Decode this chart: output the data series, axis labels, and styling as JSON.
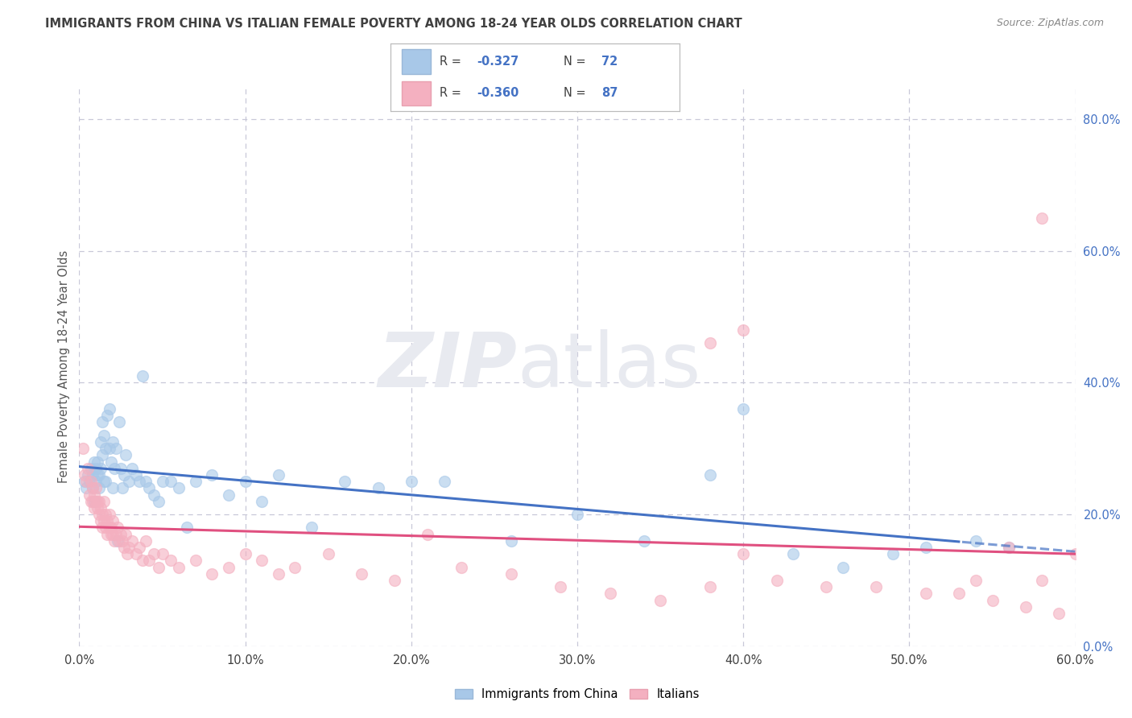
{
  "title": "IMMIGRANTS FROM CHINA VS ITALIAN FEMALE POVERTY AMONG 18-24 YEAR OLDS CORRELATION CHART",
  "source": "Source: ZipAtlas.com",
  "ylabel": "Female Poverty Among 18-24 Year Olds",
  "x_min": 0.0,
  "x_max": 0.6,
  "y_min": 0.0,
  "y_max": 0.85,
  "x_ticks": [
    0.0,
    0.1,
    0.2,
    0.3,
    0.4,
    0.5,
    0.6
  ],
  "y_ticks_right": [
    0.0,
    0.2,
    0.4,
    0.6,
    0.8
  ],
  "legend_r1": "-0.327",
  "legend_n1": "72",
  "legend_r2": "-0.360",
  "legend_n2": "87",
  "legend_label1": "Immigrants from China",
  "legend_label2": "Italians",
  "color_blue": "#a8c8e8",
  "color_pink": "#f4b0c0",
  "color_blue_line": "#4472c4",
  "color_pink_line": "#e05080",
  "color_value": "#4472c4",
  "background_color": "#ffffff",
  "grid_color": "#c8c8d8",
  "title_color": "#404040",
  "right_axis_color": "#4472c4",
  "blue_scatter_x": [
    0.003,
    0.004,
    0.005,
    0.006,
    0.007,
    0.008,
    0.008,
    0.009,
    0.009,
    0.01,
    0.01,
    0.011,
    0.011,
    0.012,
    0.012,
    0.013,
    0.013,
    0.014,
    0.014,
    0.015,
    0.015,
    0.016,
    0.016,
    0.017,
    0.018,
    0.018,
    0.019,
    0.02,
    0.02,
    0.021,
    0.022,
    0.023,
    0.024,
    0.025,
    0.026,
    0.027,
    0.028,
    0.03,
    0.032,
    0.034,
    0.036,
    0.038,
    0.04,
    0.042,
    0.045,
    0.048,
    0.05,
    0.055,
    0.06,
    0.065,
    0.07,
    0.08,
    0.09,
    0.1,
    0.11,
    0.12,
    0.14,
    0.16,
    0.18,
    0.2,
    0.22,
    0.26,
    0.3,
    0.34,
    0.38,
    0.4,
    0.43,
    0.46,
    0.49,
    0.51,
    0.54,
    0.56
  ],
  "blue_scatter_y": [
    0.25,
    0.24,
    0.26,
    0.25,
    0.27,
    0.24,
    0.26,
    0.28,
    0.22,
    0.27,
    0.25,
    0.26,
    0.28,
    0.24,
    0.26,
    0.27,
    0.31,
    0.29,
    0.34,
    0.25,
    0.32,
    0.3,
    0.25,
    0.35,
    0.3,
    0.36,
    0.28,
    0.24,
    0.31,
    0.27,
    0.3,
    0.16,
    0.34,
    0.27,
    0.24,
    0.26,
    0.29,
    0.25,
    0.27,
    0.26,
    0.25,
    0.41,
    0.25,
    0.24,
    0.23,
    0.22,
    0.25,
    0.25,
    0.24,
    0.18,
    0.25,
    0.26,
    0.23,
    0.25,
    0.22,
    0.26,
    0.18,
    0.25,
    0.24,
    0.25,
    0.25,
    0.16,
    0.2,
    0.16,
    0.26,
    0.36,
    0.14,
    0.12,
    0.14,
    0.15,
    0.16,
    0.15
  ],
  "pink_scatter_x": [
    0.002,
    0.003,
    0.004,
    0.005,
    0.006,
    0.007,
    0.007,
    0.008,
    0.008,
    0.009,
    0.009,
    0.01,
    0.01,
    0.011,
    0.011,
    0.012,
    0.012,
    0.013,
    0.013,
    0.014,
    0.014,
    0.015,
    0.015,
    0.016,
    0.016,
    0.017,
    0.017,
    0.018,
    0.018,
    0.019,
    0.019,
    0.02,
    0.02,
    0.021,
    0.022,
    0.023,
    0.024,
    0.025,
    0.026,
    0.027,
    0.028,
    0.029,
    0.03,
    0.032,
    0.034,
    0.036,
    0.038,
    0.04,
    0.042,
    0.045,
    0.048,
    0.05,
    0.055,
    0.06,
    0.07,
    0.08,
    0.09,
    0.1,
    0.11,
    0.12,
    0.13,
    0.15,
    0.17,
    0.19,
    0.21,
    0.23,
    0.26,
    0.29,
    0.32,
    0.35,
    0.38,
    0.4,
    0.42,
    0.45,
    0.48,
    0.51,
    0.53,
    0.55,
    0.57,
    0.58,
    0.59,
    0.6,
    0.54,
    0.56,
    0.58,
    0.38,
    0.4
  ],
  "pink_scatter_y": [
    0.3,
    0.26,
    0.25,
    0.27,
    0.23,
    0.25,
    0.22,
    0.24,
    0.22,
    0.23,
    0.21,
    0.22,
    0.24,
    0.21,
    0.22,
    0.2,
    0.22,
    0.21,
    0.19,
    0.2,
    0.18,
    0.22,
    0.19,
    0.2,
    0.18,
    0.19,
    0.17,
    0.18,
    0.2,
    0.17,
    0.18,
    0.17,
    0.19,
    0.16,
    0.17,
    0.18,
    0.16,
    0.17,
    0.16,
    0.15,
    0.17,
    0.14,
    0.15,
    0.16,
    0.14,
    0.15,
    0.13,
    0.16,
    0.13,
    0.14,
    0.12,
    0.14,
    0.13,
    0.12,
    0.13,
    0.11,
    0.12,
    0.14,
    0.13,
    0.11,
    0.12,
    0.14,
    0.11,
    0.1,
    0.17,
    0.12,
    0.11,
    0.09,
    0.08,
    0.07,
    0.09,
    0.14,
    0.1,
    0.09,
    0.09,
    0.08,
    0.08,
    0.07,
    0.06,
    0.1,
    0.05,
    0.14,
    0.1,
    0.15,
    0.65,
    0.46,
    0.48
  ]
}
